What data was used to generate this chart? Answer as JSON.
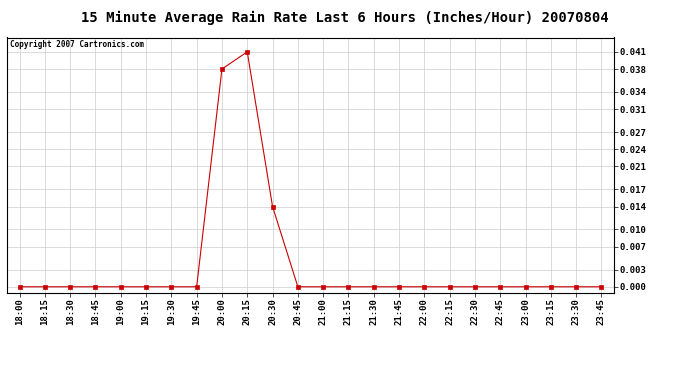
{
  "title": "15 Minute Average Rain Rate Last 6 Hours (Inches/Hour) 20070804",
  "copyright_text": "Copyright 2007 Cartronics.com",
  "x_labels": [
    "18:00",
    "18:15",
    "18:30",
    "18:45",
    "19:00",
    "19:15",
    "19:30",
    "19:45",
    "20:00",
    "20:15",
    "20:30",
    "20:45",
    "21:00",
    "21:15",
    "21:30",
    "21:45",
    "22:00",
    "22:15",
    "22:30",
    "22:45",
    "23:00",
    "23:15",
    "23:30",
    "23:45"
  ],
  "y_values": [
    0.0,
    0.0,
    0.0,
    0.0,
    0.0,
    0.0,
    0.0,
    0.0,
    0.038,
    0.041,
    0.014,
    0.0,
    0.0,
    0.0,
    0.0,
    0.0,
    0.0,
    0.0,
    0.0,
    0.0,
    0.0,
    0.0,
    0.0,
    0.0
  ],
  "y_ticks": [
    0.0,
    0.003,
    0.007,
    0.01,
    0.014,
    0.017,
    0.021,
    0.024,
    0.027,
    0.031,
    0.034,
    0.038,
    0.041
  ],
  "y_tick_labels": [
    "0.000",
    "0.003",
    "0.007",
    "0.010",
    "0.014",
    "0.017",
    "0.021",
    "0.024",
    "0.027",
    "0.031",
    "0.034",
    "0.038",
    "0.041"
  ],
  "line_color": "#cc0000",
  "marker": "s",
  "marker_size": 2.5,
  "background_color": "#ffffff",
  "grid_color": "#cccccc",
  "title_fontsize": 10,
  "tick_fontsize": 6.5,
  "copyright_fontsize": 5.5,
  "ylim_min": -0.001,
  "ylim_max": 0.0435
}
